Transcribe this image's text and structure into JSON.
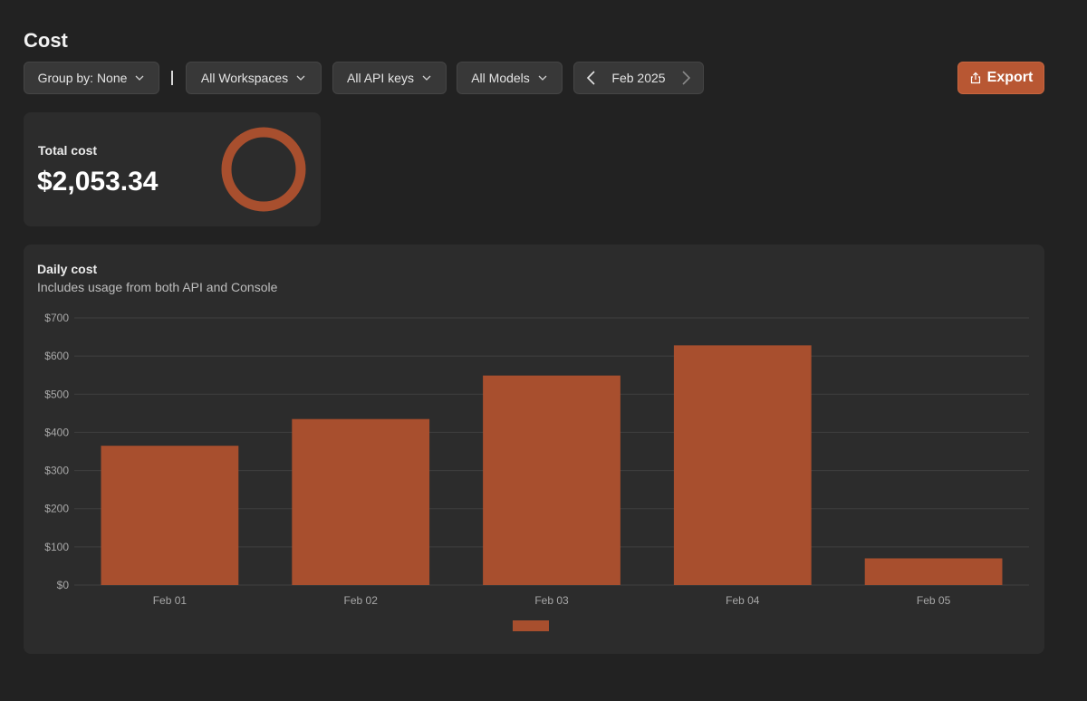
{
  "page": {
    "title": "Cost"
  },
  "toolbar": {
    "group_by": "Group by: None",
    "workspaces": "All Workspaces",
    "api_keys": "All API keys",
    "models": "All Models",
    "month": "Feb 2025",
    "export_label": "Export"
  },
  "summary": {
    "total_label": "Total cost",
    "total_value": "$2,053.34"
  },
  "colors": {
    "accent": "#b85733",
    "bar": "#a84f2e",
    "background": "#222222",
    "card": "#2c2c2c"
  },
  "chart_data": {
    "type": "bar",
    "title": "Daily cost",
    "subtitle": "Includes usage from both API and Console",
    "categories": [
      "Feb 01",
      "Feb 02",
      "Feb 03",
      "Feb 04",
      "Feb 05"
    ],
    "values": [
      365,
      435,
      549,
      628,
      70
    ],
    "ylim": [
      0,
      700
    ],
    "yticks": [
      "$0",
      "$100",
      "$200",
      "$300",
      "$400",
      "$500",
      "$600",
      "$700"
    ],
    "grid": true,
    "legend": "bottom-center"
  }
}
